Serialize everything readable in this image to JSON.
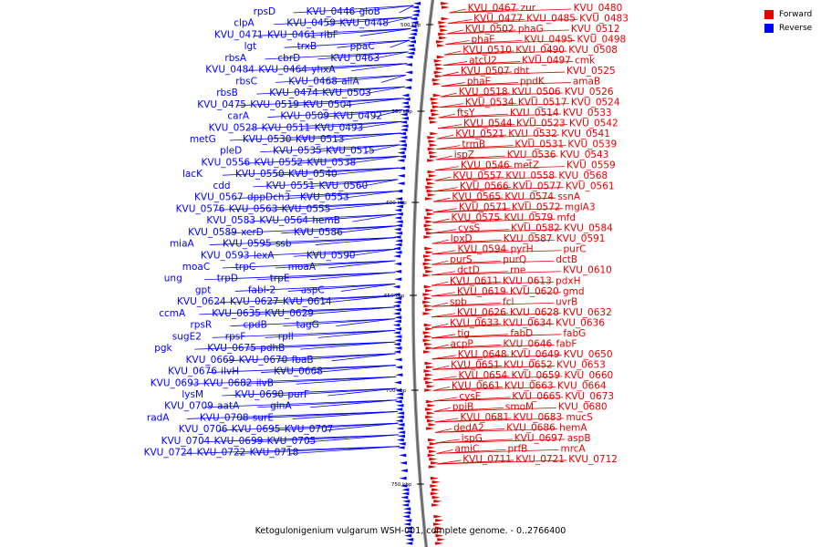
{
  "legend": {
    "forward": {
      "label": "Forward",
      "color": "#e60000"
    },
    "reverse": {
      "label": "Reverse",
      "color": "#0000ff"
    }
  },
  "caption": "Ketogulonigenium vulgarum WSH-001, complete genome. - 0..2766400",
  "scale_ticks": [
    "500 kbp",
    "550 kbp",
    "600 kbp",
    "650 kbp",
    "700 kbp",
    "750 kbp"
  ],
  "reverse_labels": [
    "gloB",
    "KVU_0446",
    "rpsD",
    "KVU_0448",
    "KVU_0459",
    "clpA",
    "ribF",
    "KVU_0461",
    "KVU_0471",
    "ppaC",
    "trxB",
    "lgt",
    "KVU_0463",
    "cbrD",
    "rbsA",
    "yhxA",
    "KVU_0464",
    "KVU_0484",
    "allA",
    "KVU_0468",
    "rbsC",
    "KVU_0503",
    "KVU_0474",
    "rbsB",
    "KVU_0504",
    "KVU_0519",
    "KVU_0475",
    "KVU_0492",
    "KVU_0509",
    "carA",
    "KVU_0493",
    "KVU_0511",
    "KVU_0528",
    "KVU_0513",
    "KVU_0530",
    "metG",
    "KVU_0515",
    "KVU_0535",
    "pleD",
    "KVU_0538",
    "KVU_0552",
    "KVU_0556",
    "KVU_0540",
    "KVU_0550",
    "lacK",
    "KVU_0560",
    "KVU_0551",
    "cdd",
    "KVU_0553",
    "dppDch3",
    "KVU_0567",
    "KVU_0555",
    "KVU_0563",
    "KVU_0576",
    "hemB",
    "KVU_0564",
    "KVU_0583",
    "KVU_0586",
    "xerD",
    "KVU_0589",
    "ssb",
    "KVU_0595",
    "miaA",
    "KVU_0590",
    "lexA",
    "KVU_0593",
    "moaA",
    "trpC",
    "moaC",
    "trpE",
    "trpD",
    "ung",
    "aspC",
    "fabI-2",
    "gpt",
    "KVU_0614",
    "KVU_0627",
    "KVU_0624",
    "KVU_0629",
    "KVU_0635",
    "ccmA",
    "tagG",
    "cpdB",
    "rpsR",
    "rplI",
    "rpsF",
    "sugE2",
    "pdhB",
    "KVU_0675",
    "pgk",
    "fbaB",
    "KVU_0670",
    "KVU_0669",
    "KVU_0668",
    "ilvH",
    "KVU_0676",
    "ilvB",
    "KVU_0682",
    "KVU_0693",
    "purF",
    "KVU_0690",
    "lysM",
    "glnA",
    "aatA",
    "KVU_0709",
    "surE",
    "KVU_0708",
    "radA",
    "KVU_0707",
    "KVU_0695",
    "KVU_0706",
    "KVU_0705",
    "KVU_0699",
    "KVU_0704",
    "KVU_0718",
    "KVU_0722",
    "KVU_0724"
  ],
  "forward_labels": [
    "KVU_0467",
    "zur",
    "KVU_0480",
    "KVU_0477",
    "KVU_0485",
    "KVU_0483",
    "KVU_0502",
    "phaG",
    "KVU_0512",
    "phaF",
    "KVU_0495",
    "KVU_0498",
    "KVU_0510",
    "KVU_0490",
    "KVU_0508",
    "atcU2",
    "KVU_0497",
    "cmk",
    "KVU_0507",
    "dht",
    "KVU_0525",
    "phaE",
    "ppdK",
    "amaB",
    "KVU_0518",
    "KVU_0506",
    "KVU_0526",
    "KVU_0534",
    "KVU_0517",
    "KVU_0524",
    "ftsY",
    "KVU_0514",
    "KVU_0533",
    "KVU_0544",
    "KVU_0523",
    "KVU_0542",
    "KVU_0521",
    "KVU_0532",
    "KVU_0541",
    "trmB",
    "KVU_0531",
    "KVU_0539",
    "ispZ",
    "KVU_0536",
    "KVU_0543",
    "KVU_0546",
    "metZ",
    "KVU_0559",
    "KVU_0557",
    "KVU_0558",
    "KVU_0568",
    "KVU_0566",
    "KVU_0577",
    "KVU_0561",
    "KVU_0565",
    "KVU_0574",
    "ssnA",
    "KVU_0571",
    "KVU_0572",
    "mglA3",
    "KVU_0575",
    "KVU_0579",
    "mfd",
    "cysS",
    "KVU_0582",
    "KVU_0584",
    "lpxD",
    "KVU_0587",
    "KVU_0591",
    "KVU_0594",
    "pyrH",
    "purC",
    "purS",
    "purQ",
    "dctB",
    "dctD",
    "rne",
    "KVU_0610",
    "KVU_0611",
    "KVU_0613",
    "pdxH",
    "KVU_0619",
    "KVU_0620",
    "gmd",
    "spb",
    "fcl",
    "uvrB",
    "KVU_0626",
    "KVU_0628",
    "KVU_0632",
    "KVU_0633",
    "KVU_0634",
    "KVU_0636",
    "tig",
    "fabD",
    "fabG",
    "acpP",
    "KVU_0646",
    "fabF",
    "KVU_0648",
    "KVU_0649",
    "KVU_0650",
    "KVU_0651",
    "KVU_0652",
    "KVU_0653",
    "KVU_0654",
    "KVU_0659",
    "KVU_0660",
    "KVU_0661",
    "KVU_0663",
    "KVU_0664",
    "cysE",
    "KVU_0665",
    "KVU_0673",
    "ppiB",
    "smoM",
    "KVU_0680",
    "KVU_0681",
    "KVU_0683",
    "mucS",
    "dedA2",
    "KVU_0686",
    "hemA",
    "ispG",
    "KVU_0697",
    "aspB",
    "amiC",
    "prfB",
    "mrcA",
    "KVU_0711",
    "KVU_0721",
    "KVU_0712"
  ]
}
